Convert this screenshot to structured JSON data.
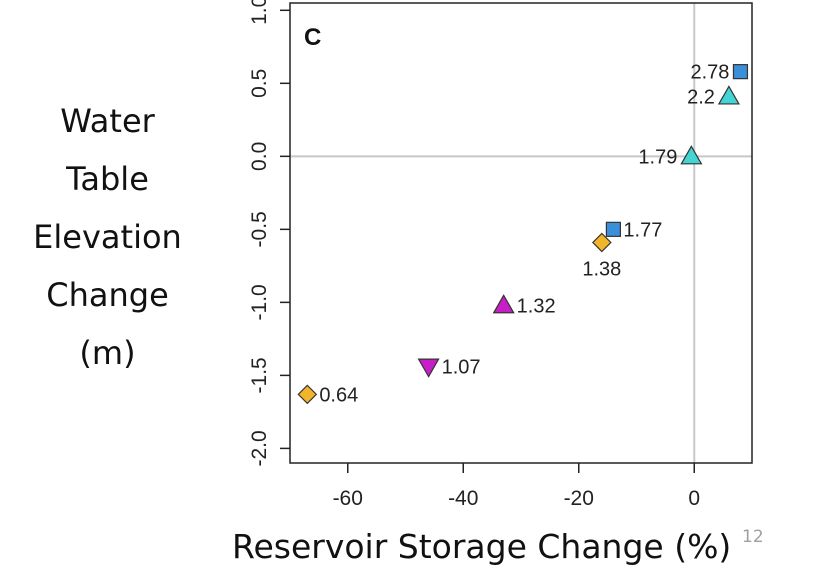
{
  "slide": {
    "number": "12"
  },
  "chart_data": {
    "type": "scatter",
    "panel_label": "C",
    "xlabel": "Reservoir Storage Change (%)",
    "ylabel_lines": [
      "Water",
      "Table",
      "Elevation",
      "Change",
      "(m)"
    ],
    "xlim": [
      -70,
      10
    ],
    "ylim": [
      -2.1,
      1.05
    ],
    "x_ticks": [
      -60,
      -40,
      -20,
      0
    ],
    "x_tick_labels": [
      "-60",
      "-40",
      "-20",
      "0"
    ],
    "y_ticks": [
      -2.0,
      -1.5,
      -1.0,
      -0.5,
      0.0,
      0.5,
      1.0
    ],
    "y_tick_labels": [
      "-2.0",
      "-1.5",
      "-1.0",
      "-0.5",
      "0.0",
      "0.5",
      "1.0"
    ],
    "reference_lines": {
      "x": 0,
      "y": 0
    },
    "grid": false,
    "colors": {
      "blue": "#3a8fd9",
      "cyan": "#45d4d4",
      "magenta": "#c81ec8",
      "orange": "#f2b42a"
    },
    "points": [
      {
        "x": 8,
        "y": 0.58,
        "label": "2.78",
        "shape": "square",
        "color": "#3a8fd9",
        "label_side": "left"
      },
      {
        "x": 6,
        "y": 0.41,
        "label": "2.2",
        "shape": "triangle-up",
        "color": "#45d4d4",
        "label_side": "left"
      },
      {
        "x": -0.5,
        "y": 0.0,
        "label": "1.79",
        "shape": "triangle-up",
        "color": "#45d4d4",
        "label_side": "left"
      },
      {
        "x": -14,
        "y": -0.5,
        "label": "1.77",
        "shape": "square",
        "color": "#3a8fd9",
        "label_side": "right"
      },
      {
        "x": -16,
        "y": -0.59,
        "label": "1.38",
        "shape": "diamond",
        "color": "#f2b42a",
        "label_side": "below"
      },
      {
        "x": -33,
        "y": -1.02,
        "label": "1.32",
        "shape": "triangle-up",
        "color": "#c81ec8",
        "label_side": "right"
      },
      {
        "x": -46,
        "y": -1.44,
        "label": "1.07",
        "shape": "triangle-down",
        "color": "#c81ec8",
        "label_side": "right"
      },
      {
        "x": -67,
        "y": -1.63,
        "label": "0.64",
        "shape": "diamond",
        "color": "#f2b42a",
        "label_side": "right"
      }
    ]
  }
}
